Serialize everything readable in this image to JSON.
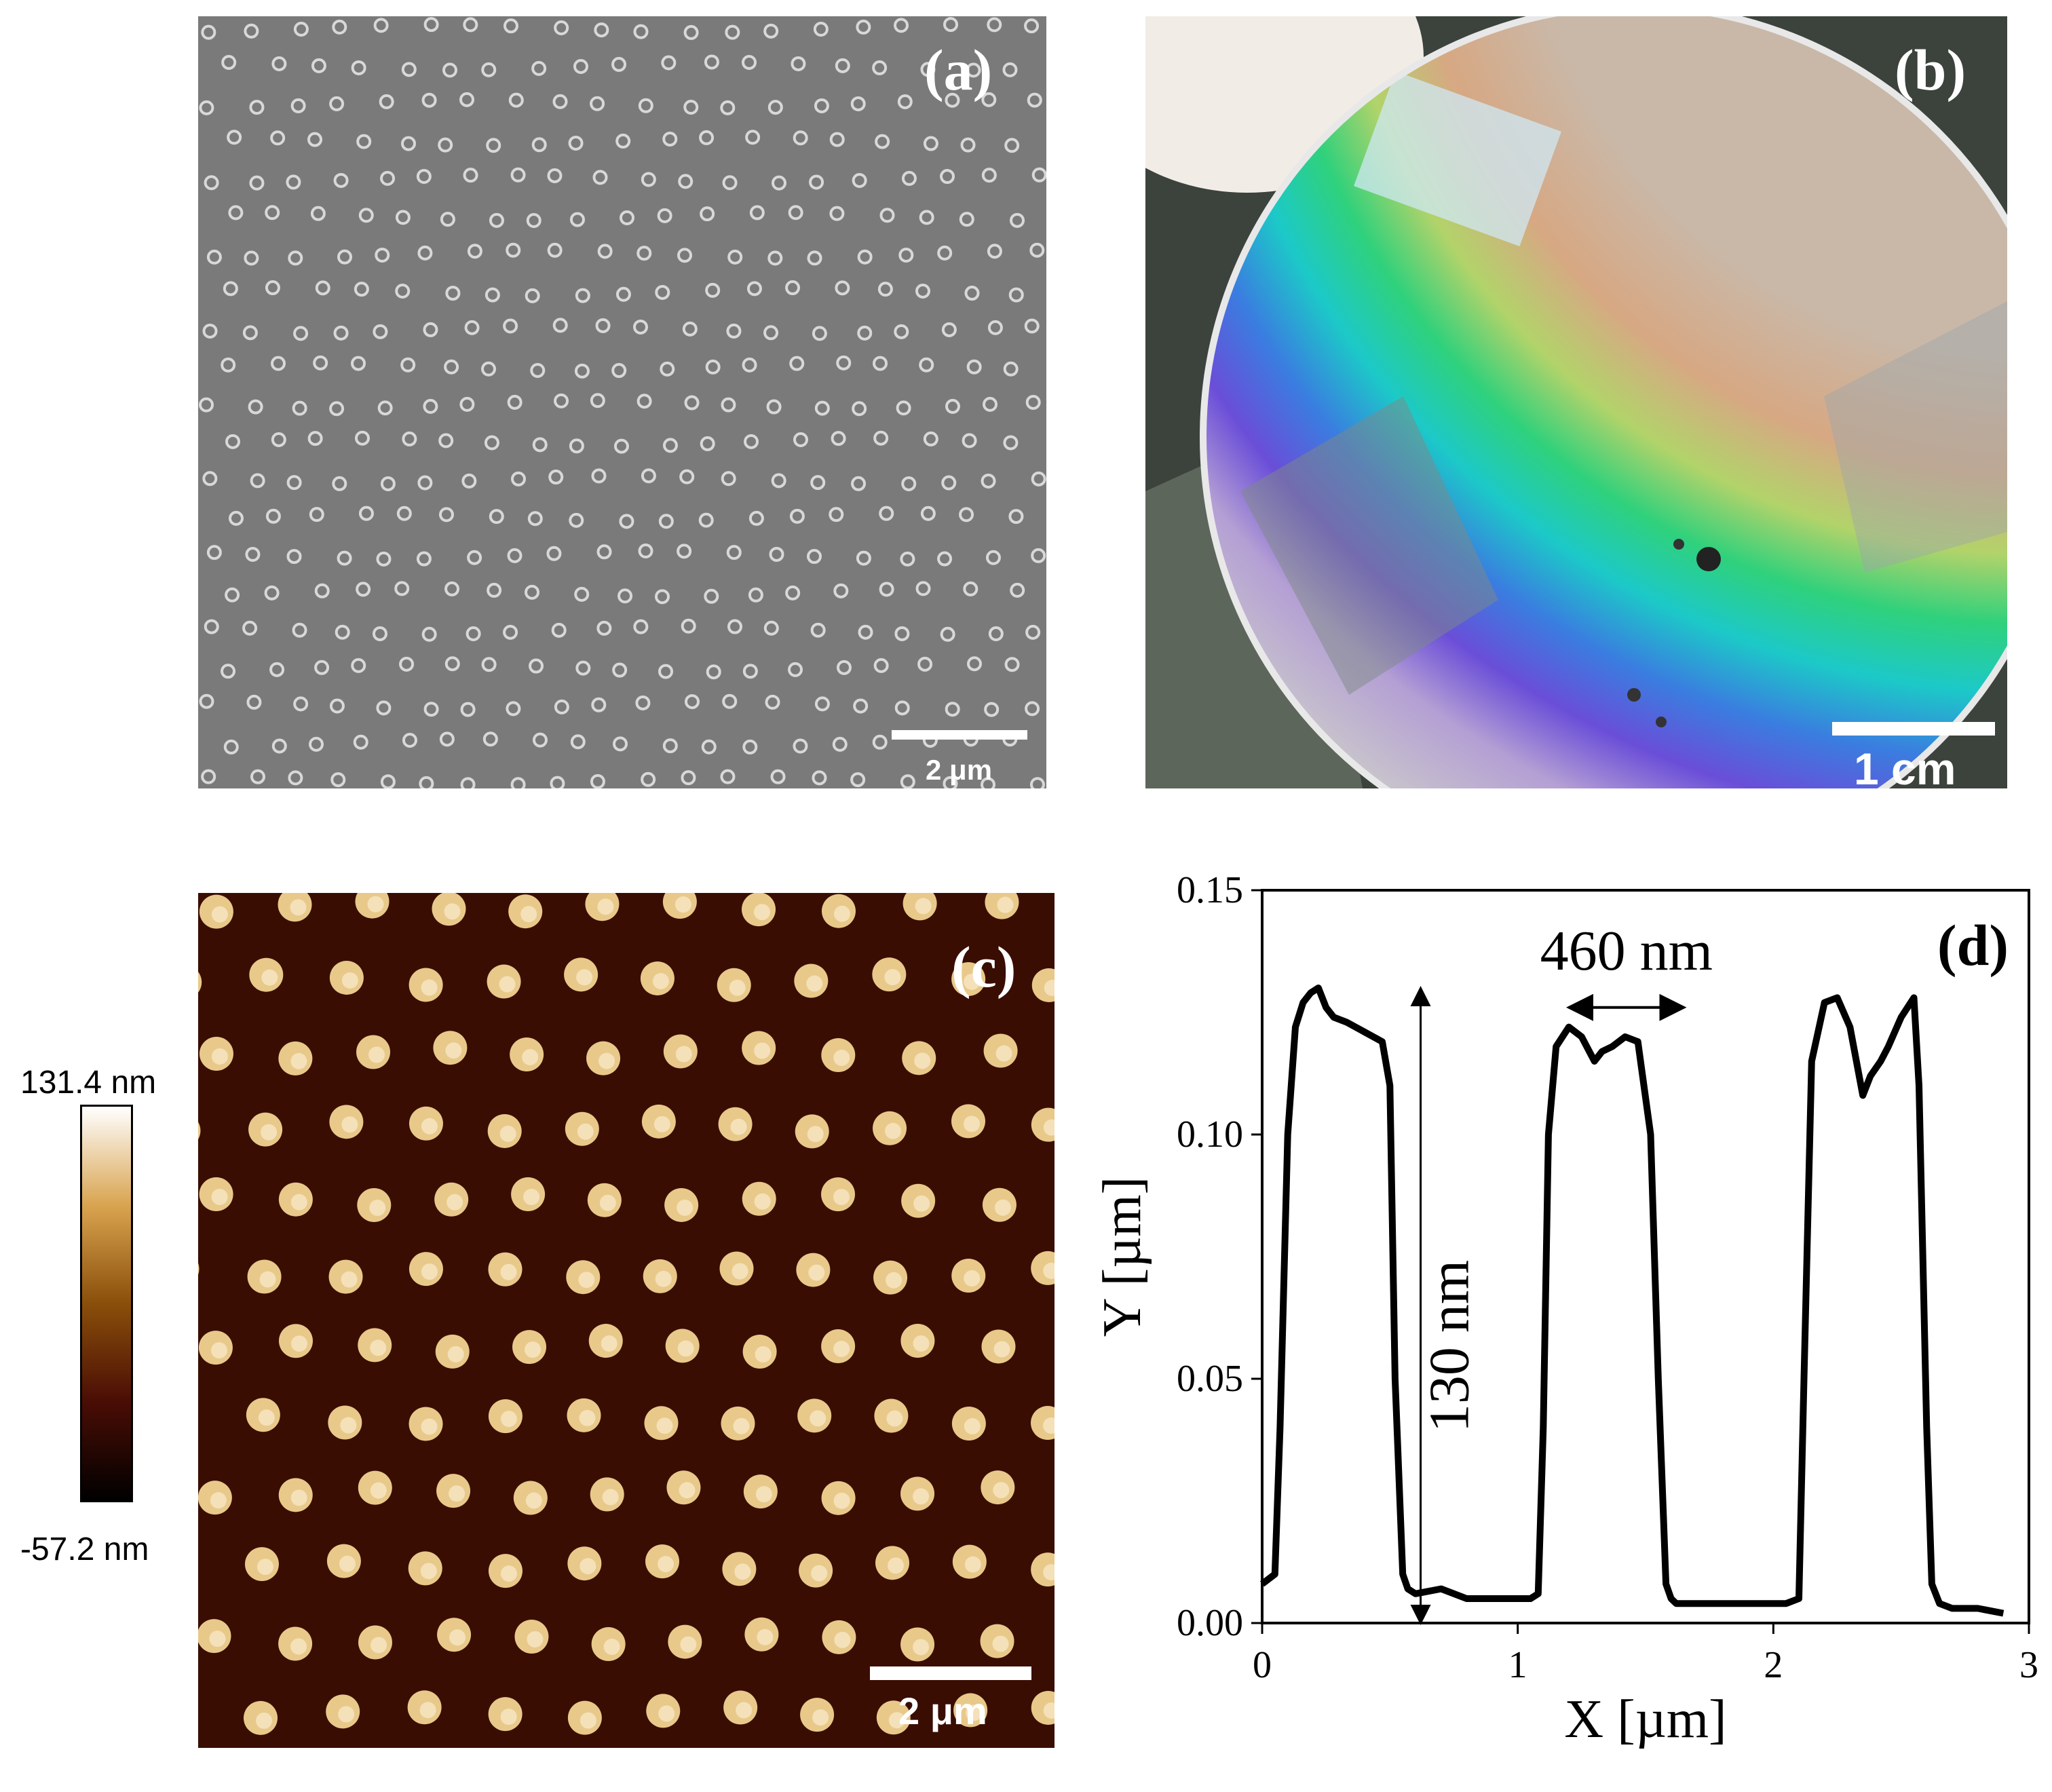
{
  "panels": {
    "a": {
      "label": "(a)",
      "scale_bar": "2 μm",
      "label_color": "#ffffff",
      "background": "#7a7a7a",
      "dot_color": "#d8d8d8"
    },
    "b": {
      "label": "(b)",
      "scale_bar": "1 cm",
      "label_color": "#ffffff"
    },
    "c": {
      "label": "(c)",
      "scale_bar": "2 μm",
      "label_color": "#ffffff",
      "background": "#3a0d03",
      "dot_color": "#e8c98a"
    },
    "d": {
      "label": "(d)"
    }
  },
  "colorbar": {
    "max_label": "131.4 nm",
    "min_label": "-57.2 nm",
    "colors": [
      "#ffffff",
      "#d9a450",
      "#8a4f0a",
      "#4a0d05",
      "#000000"
    ]
  },
  "chart_data": {
    "type": "line",
    "title": "",
    "xlabel": "X [µm]",
    "ylabel": "Y [µm]",
    "xlim": [
      0,
      3
    ],
    "ylim": [
      0,
      0.15
    ],
    "xticks": [
      "0",
      "1",
      "2",
      "3"
    ],
    "yticks": [
      "0.00",
      "0.05",
      "0.10",
      "0.15"
    ],
    "series": [
      {
        "x": [
          0.0,
          0.05,
          0.07,
          0.1,
          0.13,
          0.16,
          0.19,
          0.22,
          0.25,
          0.28,
          0.33,
          0.4,
          0.47,
          0.5,
          0.52,
          0.55,
          0.57,
          0.6,
          0.7,
          0.8,
          0.9,
          1.0,
          1.05,
          1.08,
          1.1,
          1.12,
          1.15,
          1.2,
          1.25,
          1.3,
          1.33,
          1.37,
          1.42,
          1.47,
          1.52,
          1.55,
          1.58,
          1.6,
          1.62,
          1.65,
          1.75,
          1.85,
          1.95,
          2.05,
          2.1,
          2.12,
          2.15,
          2.2,
          2.25,
          2.3,
          2.35,
          2.38,
          2.42,
          2.45,
          2.5,
          2.55,
          2.57,
          2.6,
          2.62,
          2.65,
          2.7,
          2.8,
          2.9
        ],
        "y": [
          0.008,
          0.01,
          0.04,
          0.1,
          0.122,
          0.127,
          0.129,
          0.13,
          0.126,
          0.124,
          0.123,
          0.121,
          0.119,
          0.11,
          0.05,
          0.01,
          0.007,
          0.006,
          0.007,
          0.005,
          0.005,
          0.005,
          0.005,
          0.006,
          0.04,
          0.1,
          0.118,
          0.122,
          0.12,
          0.115,
          0.117,
          0.118,
          0.12,
          0.119,
          0.1,
          0.05,
          0.008,
          0.005,
          0.004,
          0.004,
          0.004,
          0.004,
          0.004,
          0.004,
          0.005,
          0.05,
          0.115,
          0.127,
          0.128,
          0.122,
          0.108,
          0.112,
          0.115,
          0.118,
          0.124,
          0.128,
          0.11,
          0.04,
          0.008,
          0.004,
          0.003,
          0.003,
          0.002
        ]
      }
    ],
    "annotations": [
      {
        "text": "460 nm",
        "type": "horizontal-arrow",
        "x1": 1.2,
        "x2": 1.65,
        "y": 0.126
      },
      {
        "text": "130 nm",
        "type": "vertical-arrow",
        "x": 0.62,
        "y1": 0.0,
        "y2": 0.13
      }
    ]
  }
}
